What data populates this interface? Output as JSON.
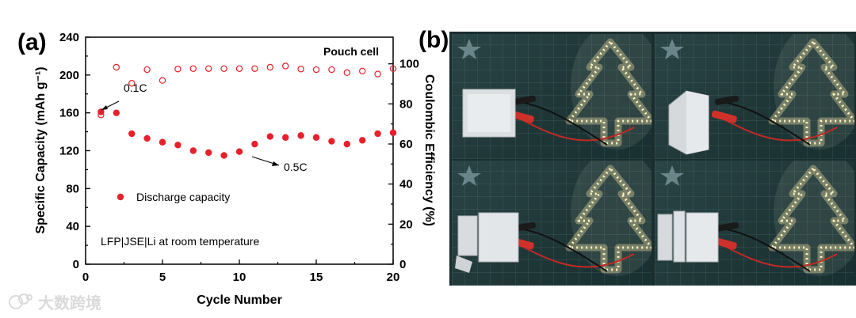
{
  "panel_a_label": "(a)",
  "panel_b_label": "(b)",
  "watermark": "大数跨境",
  "chart_data": {
    "type": "scatter",
    "title": "",
    "xlabel": "Cycle Number",
    "ylabel": "Specific Capacity (mAh g⁻¹)",
    "y2label": "Coulombic Efficiency (%)",
    "xlim": [
      0,
      20
    ],
    "ylim": [
      0,
      240
    ],
    "y2lim": [
      0,
      113.3
    ],
    "xticks": [
      "0",
      "5",
      "10",
      "15",
      "20"
    ],
    "yticks": [
      "0",
      "40",
      "80",
      "120",
      "160",
      "200",
      "240"
    ],
    "y2ticks": [
      "0",
      "20",
      "40",
      "60",
      "80",
      "100"
    ],
    "legend": "left-middle",
    "grid": false,
    "series": [
      {
        "name": "Discharge capacity",
        "axis": "left",
        "marker": "filled-circle",
        "color": "#e8202a",
        "x": [
          1,
          2,
          3,
          4,
          5,
          6,
          7,
          8,
          9,
          10,
          11,
          12,
          13,
          14,
          15,
          16,
          17,
          18,
          19,
          20
        ],
        "y": [
          161,
          160,
          138,
          133,
          129,
          126,
          120,
          118,
          115,
          119,
          127,
          135,
          134,
          136,
          134,
          130,
          127,
          131,
          138,
          139
        ]
      },
      {
        "name": "",
        "axis": "right",
        "marker": "open-circle",
        "color": "#e8202a",
        "x": [
          1,
          2,
          3,
          4,
          5,
          6,
          7,
          8,
          9,
          10,
          11,
          12,
          13,
          14,
          15,
          16,
          17,
          18,
          19,
          20
        ],
        "y": [
          74.5,
          98.3,
          90.3,
          97.1,
          91.7,
          97.4,
          97.6,
          97.6,
          97.6,
          97.6,
          97.6,
          98.3,
          98.9,
          97.4,
          97.1,
          97.1,
          95.6,
          96.4,
          94.9,
          97.6
        ]
      }
    ],
    "annotations": {
      "pouch_cell": "Pouch cell",
      "rate_01c": "0.1C",
      "rate_05c": "0.5C",
      "cell_config": "LFP|JSE|Li  at room temperature"
    },
    "colors": {
      "marker": "#e8202a"
    }
  },
  "photo_panel": {
    "description_icons": [
      "led-tree-icon",
      "pouch-cell-icon",
      "alligator-clip-icon"
    ],
    "photos": [
      {
        "name": "photo-intact-cell",
        "cell_state": "intact"
      },
      {
        "name": "photo-folded-cell",
        "cell_state": "folded"
      },
      {
        "name": "photo-cut-cell",
        "cell_state": "cut"
      },
      {
        "name": "photo-cut-pieces-cell",
        "cell_state": "cut-pieces"
      }
    ]
  }
}
